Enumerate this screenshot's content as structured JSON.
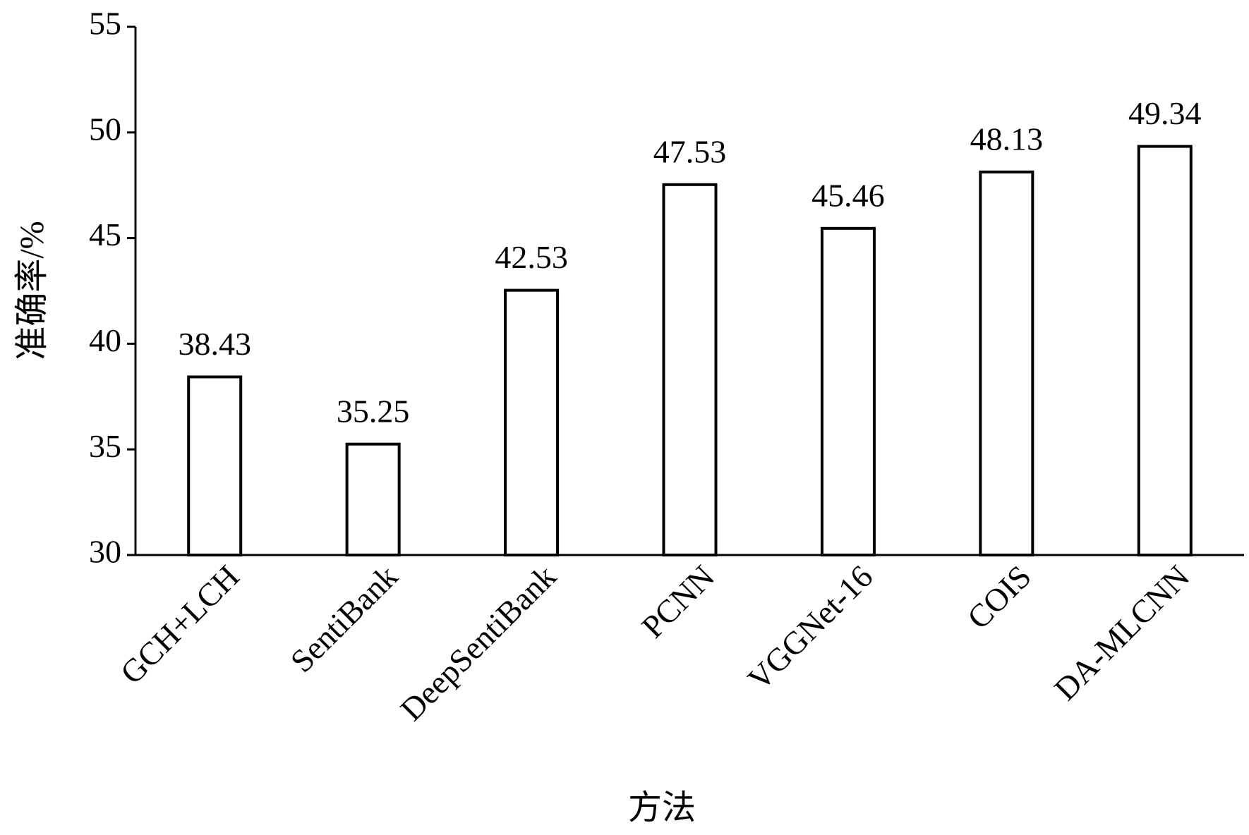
{
  "chart_data": {
    "type": "bar",
    "x_label": "方法",
    "y_label": "准确率/%",
    "categories": [
      "GCH+LCH",
      "SentiBank",
      "DeepSentiBank",
      "PCNN",
      "VGGNet-16",
      "COIS",
      "DA-MLCNN"
    ],
    "values": [
      38.43,
      35.25,
      42.53,
      47.53,
      45.46,
      48.13,
      49.34
    ],
    "color": "#ffffff",
    "ylim": [
      30,
      55
    ],
    "yticks": [
      30,
      35,
      40,
      45,
      50,
      55
    ],
    "grid": false
  }
}
